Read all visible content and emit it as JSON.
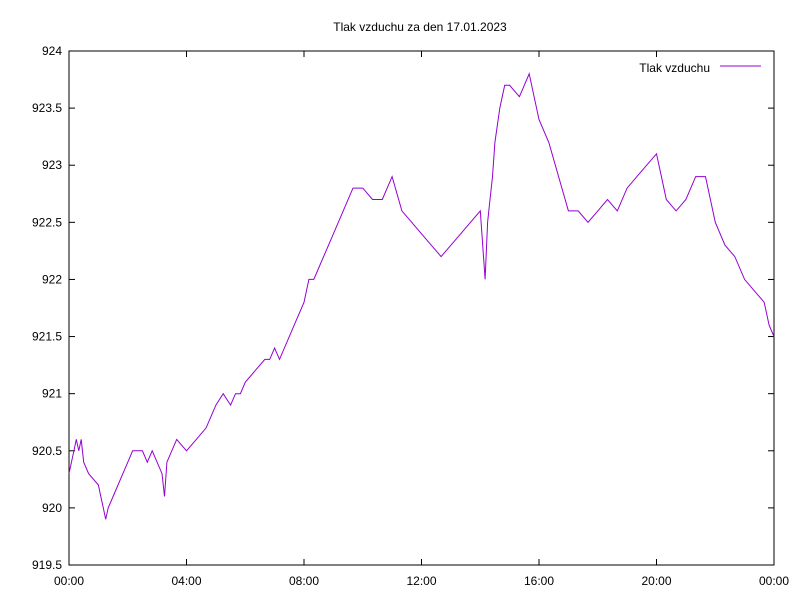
{
  "chart_data": {
    "type": "line",
    "title": "Tlak vzduchu za den 17.01.2023",
    "xlabel": "",
    "ylabel": "",
    "x_domain": [
      "00:00",
      "24:00"
    ],
    "ylim": [
      919.5,
      924
    ],
    "y_ticks": [
      919.5,
      920,
      920.5,
      921,
      921.5,
      922,
      922.5,
      923,
      923.5,
      924
    ],
    "y_tick_labels": [
      "919.5",
      "920",
      "920.5",
      "921",
      "921.5",
      "922",
      "922.5",
      "923",
      "923.5",
      "924"
    ],
    "x_ticks": [
      "00:00",
      "04:00",
      "08:00",
      "12:00",
      "16:00",
      "20:00",
      "00:00"
    ],
    "grid": false,
    "legend_position": "top-right",
    "series": [
      {
        "name": "Tlak vzduchu",
        "color": "#9400d3",
        "x": [
          "00:00",
          "00:10",
          "00:15",
          "00:20",
          "00:25",
          "00:30",
          "00:40",
          "01:00",
          "01:05",
          "01:10",
          "01:15",
          "01:20",
          "01:30",
          "01:40",
          "01:50",
          "02:00",
          "02:10",
          "02:20",
          "02:30",
          "02:40",
          "02:50",
          "03:00",
          "03:10",
          "03:15",
          "03:20",
          "03:30",
          "03:40",
          "04:00",
          "04:20",
          "04:40",
          "05:00",
          "05:15",
          "05:30",
          "05:40",
          "05:50",
          "06:00",
          "06:20",
          "06:40",
          "06:50",
          "07:00",
          "07:10",
          "07:30",
          "07:40",
          "08:00",
          "08:10",
          "08:20",
          "08:30",
          "08:40",
          "09:00",
          "09:20",
          "09:40",
          "10:00",
          "10:20",
          "10:40",
          "11:00",
          "11:20",
          "11:40",
          "12:00",
          "12:20",
          "12:40",
          "13:00",
          "13:20",
          "13:40",
          "14:00",
          "14:05",
          "14:10",
          "14:15",
          "14:20",
          "14:25",
          "14:30",
          "14:40",
          "14:50",
          "15:00",
          "15:20",
          "15:30",
          "15:40",
          "15:50",
          "16:00",
          "16:20",
          "16:40",
          "17:00",
          "17:20",
          "17:40",
          "18:00",
          "18:20",
          "18:40",
          "19:00",
          "19:20",
          "19:40",
          "20:00",
          "20:10",
          "20:20",
          "20:40",
          "21:00",
          "21:20",
          "21:40",
          "22:00",
          "22:20",
          "22:40",
          "23:00",
          "23:20",
          "23:40",
          "23:50",
          "24:00"
        ],
        "values": [
          920.3,
          920.5,
          920.6,
          920.5,
          920.6,
          920.4,
          920.3,
          920.2,
          920.1,
          920.0,
          919.9,
          920.0,
          920.1,
          920.2,
          920.3,
          920.4,
          920.5,
          920.5,
          920.5,
          920.4,
          920.5,
          920.4,
          920.3,
          920.1,
          920.4,
          920.5,
          920.6,
          920.5,
          920.6,
          920.7,
          920.9,
          921.0,
          920.9,
          921.0,
          921.0,
          921.1,
          921.2,
          921.3,
          921.3,
          921.4,
          921.3,
          921.5,
          921.6,
          921.8,
          922.0,
          922.0,
          922.1,
          922.2,
          922.4,
          922.6,
          922.8,
          922.8,
          922.7,
          922.7,
          922.9,
          922.6,
          922.5,
          922.4,
          922.3,
          922.2,
          922.3,
          922.4,
          922.5,
          922.6,
          922.3,
          922.0,
          922.5,
          922.7,
          922.9,
          923.2,
          923.5,
          923.7,
          923.7,
          923.6,
          923.7,
          923.8,
          923.6,
          923.4,
          923.2,
          922.9,
          922.6,
          922.6,
          922.5,
          922.6,
          922.7,
          922.6,
          922.8,
          922.9,
          923.0,
          923.1,
          922.9,
          922.7,
          922.6,
          922.7,
          922.9,
          922.9,
          922.5,
          922.3,
          922.2,
          922.0,
          921.9,
          921.8,
          921.6,
          921.5
        ]
      }
    ]
  }
}
